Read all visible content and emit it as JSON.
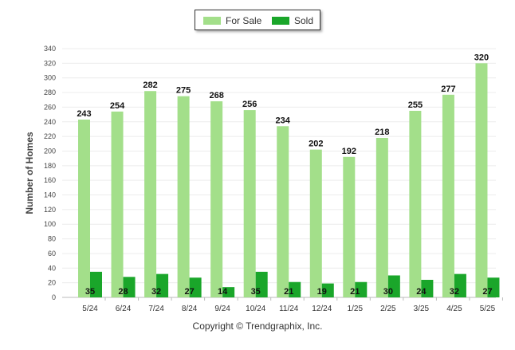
{
  "chart_data": {
    "type": "bar",
    "categories": [
      "5/24",
      "6/24",
      "7/24",
      "8/24",
      "9/24",
      "10/24",
      "11/24",
      "12/24",
      "1/25",
      "2/25",
      "3/25",
      "4/25",
      "5/25"
    ],
    "series": [
      {
        "name": "For Sale",
        "color": "#a3df8a",
        "values": [
          243,
          254,
          282,
          275,
          268,
          256,
          234,
          202,
          192,
          218,
          255,
          277,
          320
        ]
      },
      {
        "name": "Sold",
        "color": "#1aa62a",
        "values": [
          35,
          28,
          32,
          27,
          14,
          35,
          21,
          19,
          21,
          30,
          24,
          32,
          27
        ]
      }
    ],
    "ylabel": "Number of Homes",
    "xlabel": "",
    "ylim": [
      0,
      340
    ],
    "yticks": [
      0,
      20,
      40,
      60,
      80,
      100,
      120,
      140,
      160,
      180,
      200,
      220,
      240,
      260,
      280,
      300,
      320,
      340
    ],
    "grid": true,
    "legend_position": "top-center"
  },
  "footer": {
    "copyright": "Copyright © Trendgraphix, Inc."
  }
}
